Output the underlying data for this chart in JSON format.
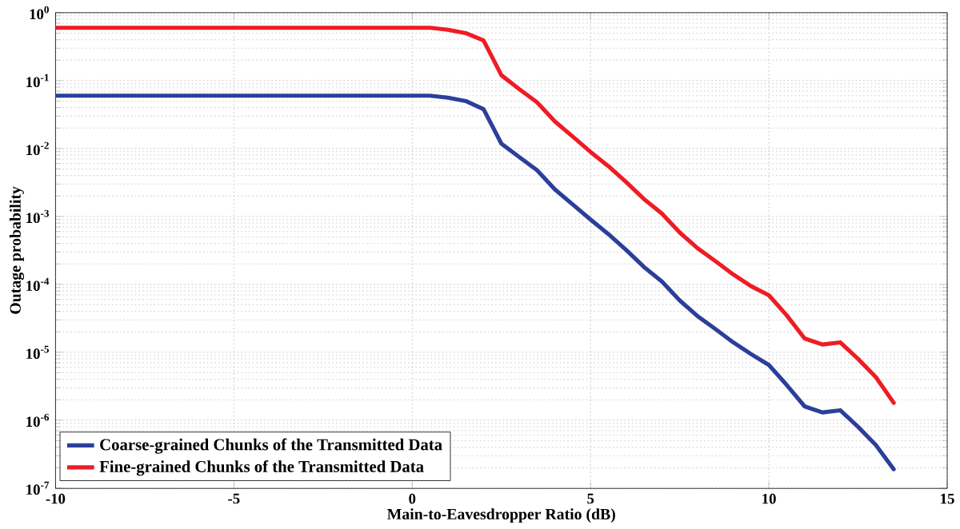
{
  "chart_data": {
    "type": "line",
    "xlabel": "Main-to-Eavesdropper Ratio (dB)",
    "ylabel": "Outage probability",
    "log": "y",
    "x": [
      -10,
      0,
      0.5,
      1,
      1.5,
      2,
      2.5,
      3,
      3.5,
      4,
      4.5,
      5,
      5.5,
      6,
      6.5,
      7,
      7.5,
      8,
      8.5,
      9,
      9.5,
      10,
      10.5,
      11,
      11.5,
      12,
      12.5,
      13,
      13.5
    ],
    "series": [
      {
        "name": "Coarse-grained Chunks of the Transmitted Data",
        "color": "#2b3f9a",
        "values": [
          0.06,
          0.06,
          0.06,
          0.056,
          0.05,
          0.038,
          0.0118,
          0.0075,
          0.0048,
          0.0025,
          0.0015,
          0.0009,
          0.00055,
          0.00032,
          0.00018,
          0.00011,
          5.8e-05,
          3.4e-05,
          2.2e-05,
          1.4e-05,
          9.4e-06,
          6.5e-06,
          3.3e-06,
          1.6e-06,
          1.3e-06,
          1.4e-06,
          8e-07,
          4.3e-07,
          1.9e-07
        ]
      },
      {
        "name": "Fine-grained Chunks of the Transmitted Data",
        "color": "#ee1c24",
        "values": [
          0.6,
          0.6,
          0.6,
          0.56,
          0.5,
          0.39,
          0.12,
          0.075,
          0.048,
          0.025,
          0.015,
          0.0089,
          0.0055,
          0.0032,
          0.0018,
          0.0011,
          0.00058,
          0.00034,
          0.00022,
          0.00014,
          9.4e-05,
          6.9e-05,
          3.5e-05,
          1.6e-05,
          1.3e-05,
          1.4e-05,
          8e-06,
          4.3e-06,
          1.8e-06
        ]
      }
    ],
    "xlim": [
      -10,
      15
    ],
    "xticks": [
      -10,
      -5,
      0,
      5,
      10,
      15
    ],
    "ylim": [
      1e-07,
      1
    ],
    "yticks": [
      {
        "value": 1e-07,
        "label": "10$^{-7}$"
      },
      {
        "value": 1e-06,
        "label": "10$^{-6}$"
      },
      {
        "value": 1e-05,
        "label": "10$^{-5}$"
      },
      {
        "value": 0.0001,
        "label": "10$^{-4}$"
      },
      {
        "value": 0.001,
        "label": "10$^{-3}$"
      },
      {
        "value": 0.01,
        "label": "10$^{-2}$"
      },
      {
        "value": 0.1,
        "label": "10$^{-1}$"
      },
      {
        "value": 1,
        "label": "10$^{0}$"
      }
    ],
    "grid": true,
    "legend": "bottom left",
    "line_style": "solid",
    "marker": "none"
  }
}
